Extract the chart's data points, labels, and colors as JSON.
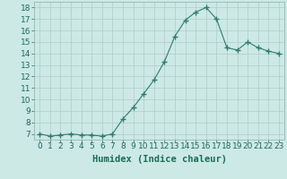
{
  "x": [
    0,
    1,
    2,
    3,
    4,
    5,
    6,
    7,
    8,
    9,
    10,
    11,
    12,
    13,
    14,
    15,
    16,
    17,
    18,
    19,
    20,
    21,
    22,
    23
  ],
  "y": [
    7.0,
    6.8,
    6.9,
    7.0,
    6.9,
    6.9,
    6.8,
    7.0,
    8.3,
    9.3,
    10.5,
    11.7,
    13.3,
    15.5,
    16.9,
    17.6,
    18.0,
    17.0,
    14.5,
    14.3,
    15.0,
    14.5,
    14.2,
    14.0
  ],
  "line_color": "#2d7d6e",
  "marker": "+",
  "marker_size": 4,
  "background_color": "#cce9e5",
  "grid_color": "#b0ccc8",
  "xlabel": "Humidex (Indice chaleur)",
  "xlim": [
    -0.5,
    23.5
  ],
  "ylim": [
    6.5,
    18.5
  ],
  "yticks": [
    7,
    8,
    9,
    10,
    11,
    12,
    13,
    14,
    15,
    16,
    17,
    18
  ],
  "xticks": [
    0,
    1,
    2,
    3,
    4,
    5,
    6,
    7,
    8,
    9,
    10,
    11,
    12,
    13,
    14,
    15,
    16,
    17,
    18,
    19,
    20,
    21,
    22,
    23
  ],
  "xtick_labels": [
    "0",
    "1",
    "2",
    "3",
    "4",
    "5",
    "6",
    "7",
    "8",
    "9",
    "10",
    "11",
    "12",
    "13",
    "14",
    "15",
    "16",
    "17",
    "18",
    "19",
    "20",
    "21",
    "22",
    "23"
  ],
  "tick_fontsize": 6.5,
  "xlabel_fontsize": 7.5,
  "tick_color": "#1a6b5e",
  "axis_color": "#1a6b5e",
  "spine_color": "#8ab0aa"
}
